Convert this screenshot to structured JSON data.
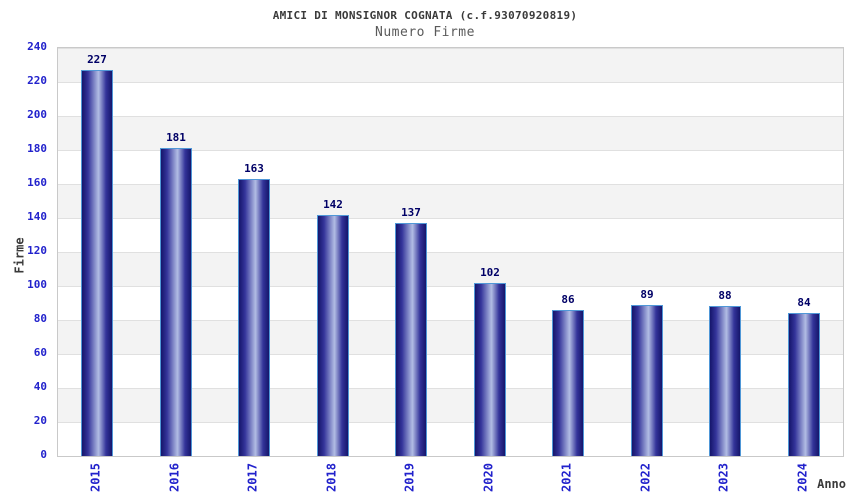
{
  "title": "AMICI DI MONSIGNOR COGNATA (c.f.93070920819)",
  "subtitle": "Numero Firme",
  "chart_data": {
    "type": "bar",
    "categories": [
      "2015",
      "2016",
      "2017",
      "2018",
      "2019",
      "2020",
      "2021",
      "2022",
      "2023",
      "2024"
    ],
    "values": [
      227,
      181,
      163,
      142,
      137,
      102,
      86,
      89,
      88,
      84
    ],
    "title": "AMICI DI MONSIGNOR COGNATA (c.f.93070920819)",
    "subtitle": "Numero Firme",
    "xlabel": "Anno",
    "ylabel": "Firme",
    "ylim": [
      0,
      240
    ],
    "ytick_step": 20,
    "yticks": [
      0,
      20,
      40,
      60,
      80,
      100,
      120,
      140,
      160,
      180,
      200,
      220,
      240
    ],
    "grid": "horizontal-bands-alternating",
    "legend": "none"
  },
  "colors": {
    "bar_dark": "#15156b",
    "bar_mid": "#34349a",
    "bar_light": "#b2bde4",
    "bar_border": "#4f97d7",
    "value_label": "#000066",
    "tick_label": "#2222cc",
    "band_gray": "#f3f3f3",
    "band_white": "#ffffff",
    "grid_line": "#e0e0e0",
    "plot_border": "#c9c9c9",
    "title_color": "#3a3a3a",
    "subtitle_color": "#5a5a5a",
    "axis_title": "#3a3a3a"
  }
}
